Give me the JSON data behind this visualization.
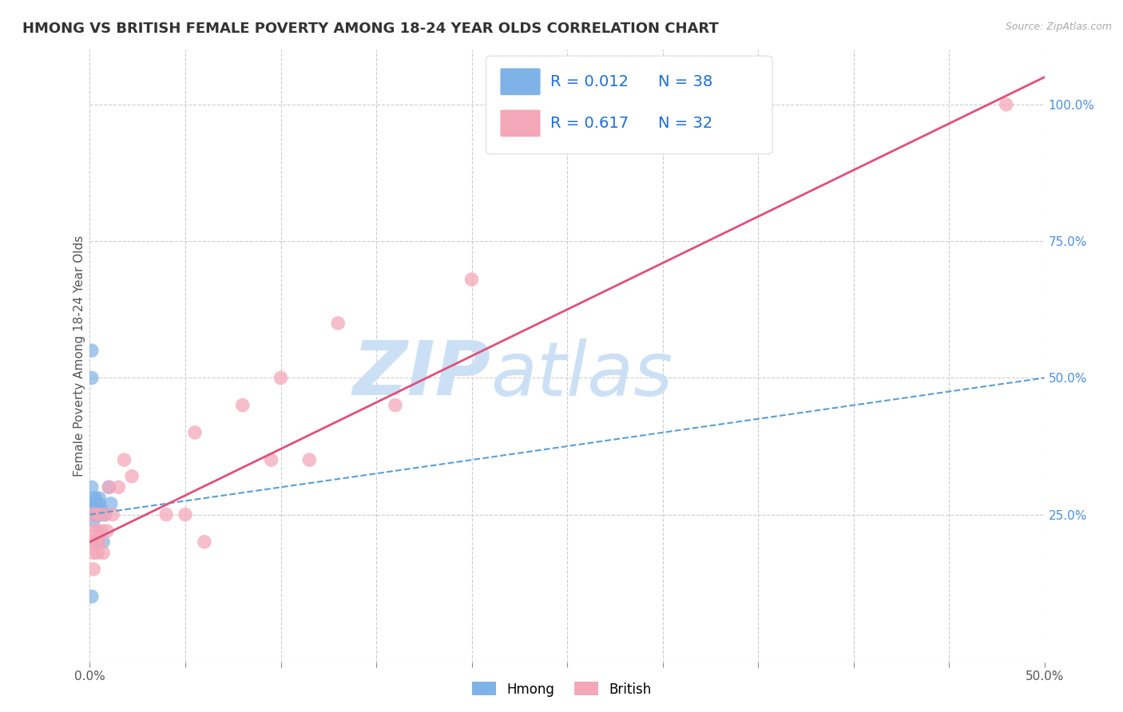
{
  "title": "HMONG VS BRITISH FEMALE POVERTY AMONG 18-24 YEAR OLDS CORRELATION CHART",
  "source_text": "Source: ZipAtlas.com",
  "ylabel": "Female Poverty Among 18-24 Year Olds",
  "xlim": [
    0.0,
    0.5
  ],
  "ylim": [
    -0.02,
    1.1
  ],
  "xticks": [
    0.0,
    0.05,
    0.1,
    0.15,
    0.2,
    0.25,
    0.3,
    0.35,
    0.4,
    0.45,
    0.5
  ],
  "xticklabels_show": [
    "0.0%",
    "",
    "",
    "",
    "",
    "",
    "",
    "",
    "",
    "",
    "50.0%"
  ],
  "yticks_right": [
    0.25,
    0.5,
    0.75,
    1.0
  ],
  "yticklabels_right": [
    "25.0%",
    "50.0%",
    "75.0%",
    "100.0%"
  ],
  "hmong_color": "#7fb3e8",
  "british_color": "#f4a7b9",
  "hmong_edge": "#5a9fd4",
  "british_edge": "#e080a0",
  "hmong_R": 0.012,
  "hmong_N": 38,
  "british_R": 0.617,
  "british_N": 32,
  "background_color": "#ffffff",
  "grid_color": "#cccccc",
  "watermark": "ZIPatlas",
  "watermark_color": "#cce0f5",
  "legend_color": "#1a6fd4",
  "hmong_line_color": "#5a9fd4",
  "british_line_color": "#e0507a",
  "hmong_x": [
    0.001,
    0.001,
    0.001,
    0.001,
    0.002,
    0.002,
    0.002,
    0.002,
    0.002,
    0.002,
    0.002,
    0.002,
    0.002,
    0.003,
    0.003,
    0.003,
    0.003,
    0.003,
    0.003,
    0.003,
    0.003,
    0.004,
    0.004,
    0.004,
    0.004,
    0.004,
    0.004,
    0.005,
    0.005,
    0.005,
    0.005,
    0.005,
    0.006,
    0.007,
    0.007,
    0.008,
    0.01,
    0.011
  ],
  "hmong_y": [
    0.55,
    0.5,
    0.3,
    0.1,
    0.28,
    0.27,
    0.26,
    0.26,
    0.26,
    0.25,
    0.25,
    0.25,
    0.24,
    0.28,
    0.27,
    0.27,
    0.26,
    0.26,
    0.25,
    0.25,
    0.25,
    0.27,
    0.26,
    0.26,
    0.25,
    0.25,
    0.2,
    0.28,
    0.27,
    0.26,
    0.25,
    0.25,
    0.26,
    0.25,
    0.2,
    0.25,
    0.3,
    0.27
  ],
  "british_x": [
    0.001,
    0.001,
    0.002,
    0.002,
    0.002,
    0.003,
    0.003,
    0.004,
    0.004,
    0.005,
    0.005,
    0.006,
    0.007,
    0.008,
    0.009,
    0.01,
    0.012,
    0.015,
    0.018,
    0.022,
    0.04,
    0.05,
    0.055,
    0.06,
    0.08,
    0.095,
    0.1,
    0.115,
    0.13,
    0.16,
    0.2,
    0.48
  ],
  "british_y": [
    0.25,
    0.2,
    0.22,
    0.18,
    0.15,
    0.25,
    0.2,
    0.22,
    0.18,
    0.25,
    0.2,
    0.22,
    0.18,
    0.25,
    0.22,
    0.3,
    0.25,
    0.3,
    0.35,
    0.32,
    0.25,
    0.25,
    0.4,
    0.2,
    0.45,
    0.35,
    0.5,
    0.35,
    0.6,
    0.45,
    0.68,
    1.0
  ],
  "title_fontsize": 13,
  "axis_label_fontsize": 11,
  "tick_fontsize": 11,
  "legend_fontsize": 14
}
